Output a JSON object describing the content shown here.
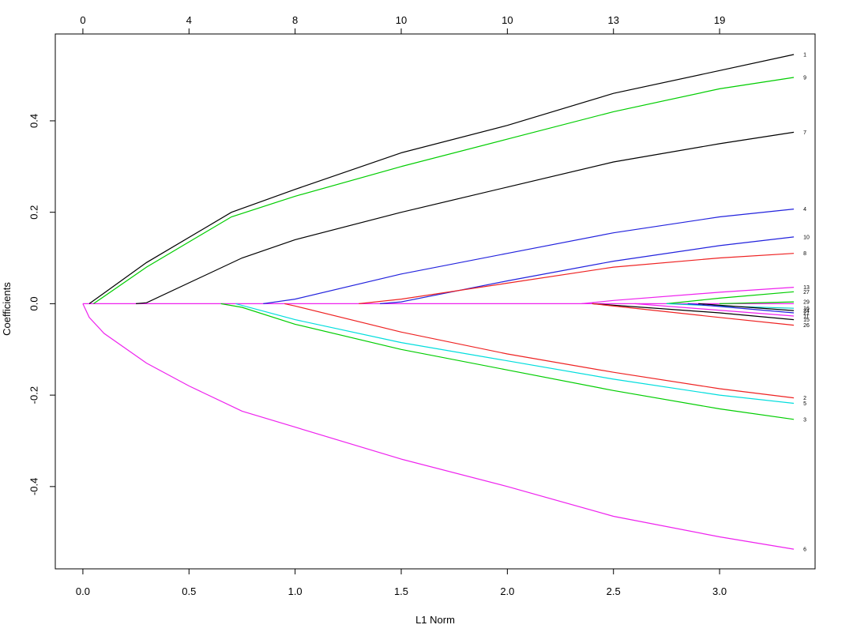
{
  "chart_data": {
    "type": "line",
    "xlabel": "L1 Norm",
    "ylabel": "Coefficients",
    "xlim": [
      -0.13,
      3.45
    ],
    "ylim": [
      -0.58,
      0.59
    ],
    "x_ticks": [
      0.0,
      0.5,
      1.0,
      1.5,
      2.0,
      2.5,
      3.0
    ],
    "x_tick_labels": [
      "0.0",
      "0.5",
      "1.0",
      "1.5",
      "2.0",
      "2.5",
      "3.0"
    ],
    "y_ticks": [
      -0.4,
      -0.2,
      0.0,
      0.2,
      0.4
    ],
    "y_tick_labels": [
      "-0.4",
      "-0.2",
      "0.0",
      "0.2",
      "0.4"
    ],
    "top_axis": {
      "label": "",
      "ticks": [
        0.0,
        0.5,
        1.0,
        1.5,
        2.0,
        2.5,
        3.0
      ],
      "tick_labels": [
        "0",
        "4",
        "8",
        "10",
        "10",
        "13",
        "19"
      ]
    },
    "grid": false,
    "series": [
      {
        "name": "1",
        "color": "#000000",
        "x": [
          0.03,
          0.3,
          0.7,
          1.0,
          1.5,
          2.0,
          2.5,
          3.0,
          3.35
        ],
        "y": [
          0,
          0.09,
          0.2,
          0.25,
          0.33,
          0.39,
          0.46,
          0.51,
          0.545
        ]
      },
      {
        "name": "9",
        "color": "#00cd00",
        "x": [
          0.05,
          0.3,
          0.7,
          1.0,
          1.5,
          2.0,
          2.5,
          3.0,
          3.35
        ],
        "y": [
          0,
          0.08,
          0.19,
          0.235,
          0.3,
          0.36,
          0.42,
          0.47,
          0.495
        ]
      },
      {
        "name": "7",
        "color": "#000000",
        "x": [
          0.25,
          0.3,
          0.75,
          1.0,
          1.5,
          2.0,
          2.5,
          3.0,
          3.35
        ],
        "y": [
          0,
          0.002,
          0.1,
          0.14,
          0.2,
          0.255,
          0.31,
          0.35,
          0.375
        ]
      },
      {
        "name": "4",
        "color": "#2222dd",
        "x": [
          0.85,
          1.0,
          1.5,
          2.0,
          2.5,
          3.0,
          3.35
        ],
        "y": [
          0,
          0.01,
          0.065,
          0.11,
          0.155,
          0.19,
          0.207
        ]
      },
      {
        "name": "10",
        "color": "#2222dd",
        "x": [
          1.4,
          1.5,
          2.0,
          2.5,
          3.0,
          3.35
        ],
        "y": [
          0,
          0.004,
          0.05,
          0.093,
          0.127,
          0.146
        ]
      },
      {
        "name": "8",
        "color": "#ee2222",
        "x": [
          1.3,
          1.5,
          2.0,
          2.5,
          3.0,
          3.35
        ],
        "y": [
          0,
          0.01,
          0.045,
          0.08,
          0.1,
          0.11
        ]
      },
      {
        "name": "13",
        "color": "#ee22ee",
        "x": [
          2.35,
          2.5,
          3.0,
          3.35
        ],
        "y": [
          0,
          0.007,
          0.025,
          0.036
        ]
      },
      {
        "name": "27",
        "color": "#00cd00",
        "x": [
          2.75,
          3.0,
          3.35
        ],
        "y": [
          0,
          0.012,
          0.026
        ]
      },
      {
        "name": "29",
        "color": "#00cd00",
        "x": [
          3.0,
          3.35
        ],
        "y": [
          0,
          0.004
        ]
      },
      {
        "name": "16",
        "color": "#00cccc",
        "x": [
          2.75,
          3.0,
          3.35
        ],
        "y": [
          0,
          -0.005,
          -0.01
        ]
      },
      {
        "name": "24",
        "color": "#000000",
        "x": [
          2.9,
          3.35
        ],
        "y": [
          0,
          -0.015
        ]
      },
      {
        "name": "21",
        "color": "#2222dd",
        "x": [
          2.85,
          3.35
        ],
        "y": [
          0,
          -0.02
        ]
      },
      {
        "name": "11",
        "color": "#ee22ee",
        "x": [
          2.6,
          3.35
        ],
        "y": [
          0,
          -0.027
        ]
      },
      {
        "name": "15",
        "color": "#000000",
        "x": [
          2.4,
          3.0,
          3.35
        ],
        "y": [
          0,
          -0.02,
          -0.035
        ]
      },
      {
        "name": "26",
        "color": "#ee2222",
        "x": [
          2.4,
          3.0,
          3.35
        ],
        "y": [
          0,
          -0.03,
          -0.047
        ]
      },
      {
        "name": "2",
        "color": "#ee2222",
        "x": [
          0.95,
          1.0,
          1.5,
          2.0,
          2.5,
          3.0,
          3.35
        ],
        "y": [
          0,
          -0.005,
          -0.062,
          -0.11,
          -0.15,
          -0.186,
          -0.206
        ]
      },
      {
        "name": "5",
        "color": "#00dddd",
        "x": [
          0.72,
          1.0,
          1.5,
          2.0,
          2.5,
          3.0,
          3.35
        ],
        "y": [
          0,
          -0.035,
          -0.085,
          -0.125,
          -0.165,
          -0.2,
          -0.218
        ]
      },
      {
        "name": "3",
        "color": "#00cd00",
        "x": [
          0.65,
          0.75,
          1.0,
          1.5,
          2.0,
          2.5,
          3.0,
          3.35
        ],
        "y": [
          0,
          -0.008,
          -0.045,
          -0.1,
          -0.145,
          -0.19,
          -0.23,
          -0.253
        ]
      },
      {
        "name": "6",
        "color": "#ee22ee",
        "x": [
          0.0,
          0.03,
          0.1,
          0.3,
          0.5,
          0.75,
          1.0,
          1.5,
          2.0,
          2.5,
          3.0,
          3.35
        ],
        "y": [
          0,
          -0.03,
          -0.065,
          -0.13,
          -0.18,
          -0.235,
          -0.27,
          -0.34,
          -0.4,
          -0.465,
          -0.51,
          -0.537
        ]
      },
      {
        "name": "",
        "color": "#ee22ee",
        "x": [
          0.0,
          3.35
        ],
        "y": [
          0,
          0
        ]
      }
    ]
  }
}
